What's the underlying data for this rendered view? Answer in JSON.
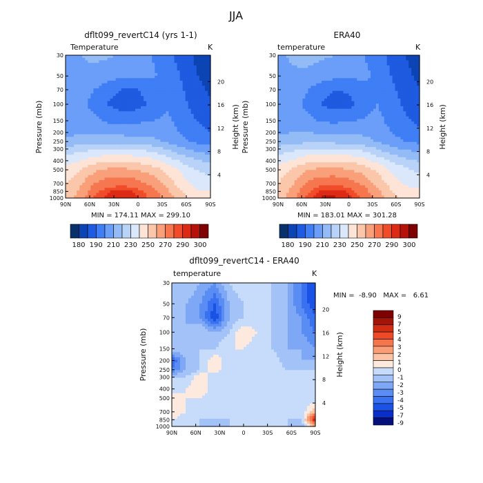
{
  "figure_title": "JJA",
  "colors": {
    "main_scale": [
      "#08306b",
      "#0c44b4",
      "#1e5be0",
      "#3f7ef5",
      "#6a9ef8",
      "#93bbf5",
      "#b9d2f7",
      "#dbe7fa",
      "#fde4d6",
      "#fbc7ab",
      "#f9a07a",
      "#f6764f",
      "#f04c2a",
      "#dc2a14",
      "#b5130a",
      "#7f0000"
    ],
    "diff_scale": [
      "#06107a",
      "#0a2fc8",
      "#1a52e6",
      "#3a71f0",
      "#5a8df3",
      "#7ea8f5",
      "#a3c2f7",
      "#c7dbfa",
      "#fde9de",
      "#fbc4a6",
      "#f99d77",
      "#f5754d",
      "#ee4a28",
      "#d22c12",
      "#a31408",
      "#7f0000"
    ]
  },
  "chart_data": [
    {
      "type": "heatmap",
      "title": "dflt099_revertC14 (yrs 1-1)",
      "variable_label": "Temperature",
      "units": "K",
      "xlabel": "",
      "ylabel": "Pressure (mb)",
      "ylabel_right": "Height (km)",
      "x_ticks": [
        "90N",
        "60N",
        "30N",
        "0",
        "30S",
        "60S",
        "90S"
      ],
      "y_ticks": [
        "30",
        "50",
        "70",
        "100",
        "150",
        "200",
        "250",
        "300",
        "400",
        "500",
        "700",
        "850",
        "1000"
      ],
      "y_ticks_right": [
        "20",
        "16",
        "12",
        "8",
        "4"
      ],
      "stats": "MIN = 174.11   MAX = 299.10",
      "colorbar_labels": [
        "180",
        "190",
        "210",
        "230",
        "250",
        "270",
        "290",
        "300"
      ],
      "field": [
        [
          218,
          220,
          222,
          221,
          219,
          214,
          210,
          203,
          196,
          188,
          180
        ],
        [
          216,
          218,
          217,
          214,
          212,
          211,
          211,
          208,
          199,
          191,
          184
        ],
        [
          213,
          214,
          210,
          203,
          199,
          200,
          205,
          208,
          201,
          194,
          188
        ],
        [
          212,
          213,
          207,
          199,
          195,
          196,
          203,
          209,
          203,
          196,
          191
        ],
        [
          214,
          215,
          212,
          208,
          207,
          208,
          210,
          212,
          206,
          200,
          195
        ],
        [
          217,
          219,
          219,
          218,
          217,
          217,
          217,
          215,
          209,
          204,
          200
        ],
        [
          223,
          225,
          227,
          227,
          226,
          225,
          223,
          218,
          213,
          208,
          206
        ],
        [
          233,
          236,
          239,
          240,
          240,
          239,
          236,
          229,
          222,
          217,
          214
        ],
        [
          245,
          250,
          256,
          258,
          258,
          257,
          253,
          246,
          238,
          231,
          227
        ],
        [
          253,
          260,
          268,
          272,
          272,
          270,
          265,
          257,
          248,
          240,
          236
        ],
        [
          259,
          268,
          280,
          286,
          287,
          284,
          277,
          266,
          255,
          247,
          244
        ],
        [
          262,
          272,
          287,
          295,
          297,
          293,
          284,
          272,
          260,
          251,
          250
        ],
        [
          264,
          274,
          291,
          299,
          299,
          296,
          288,
          276,
          264,
          255,
          255
        ]
      ]
    },
    {
      "type": "heatmap",
      "title": "ERA40",
      "variable_label": "temperature",
      "units": "K",
      "xlabel": "",
      "ylabel": "Pressure (mb)",
      "ylabel_right": "Height (km)",
      "x_ticks": [
        "90N",
        "60N",
        "30N",
        "0",
        "30S",
        "60S",
        "90S"
      ],
      "y_ticks": [
        "30",
        "50",
        "70",
        "100",
        "150",
        "200",
        "250",
        "300",
        "400",
        "500",
        "700",
        "850",
        "1000"
      ],
      "y_ticks_right": [
        "20",
        "16",
        "12",
        "8",
        "4"
      ],
      "stats": "MIN = 183.01   MAX = 301.28",
      "colorbar_labels": [
        "180",
        "190",
        "210",
        "230",
        "250",
        "270",
        "290",
        "300"
      ],
      "field": [
        [
          219,
          221,
          223,
          222,
          220,
          215,
          211,
          204,
          197,
          190,
          184
        ],
        [
          217,
          219,
          218,
          215,
          213,
          212,
          212,
          209,
          200,
          193,
          187
        ],
        [
          214,
          215,
          211,
          204,
          200,
          201,
          206,
          209,
          202,
          196,
          190
        ],
        [
          213,
          214,
          208,
          200,
          196,
          197,
          204,
          210,
          204,
          198,
          193
        ],
        [
          215,
          216,
          213,
          209,
          208,
          209,
          211,
          213,
          207,
          202,
          197
        ],
        [
          218,
          220,
          220,
          219,
          218,
          218,
          218,
          216,
          210,
          206,
          202
        ],
        [
          224,
          226,
          228,
          228,
          227,
          226,
          224,
          219,
          214,
          210,
          208
        ],
        [
          234,
          237,
          240,
          241,
          241,
          240,
          237,
          230,
          223,
          219,
          216
        ],
        [
          246,
          251,
          257,
          259,
          259,
          258,
          254,
          247,
          239,
          233,
          229
        ],
        [
          254,
          261,
          269,
          273,
          273,
          271,
          266,
          258,
          249,
          242,
          238
        ],
        [
          260,
          269,
          281,
          287,
          288,
          285,
          278,
          267,
          256,
          249,
          246
        ],
        [
          263,
          273,
          288,
          296,
          298,
          294,
          285,
          273,
          261,
          253,
          252
        ],
        [
          265,
          275,
          292,
          301,
          301,
          297,
          289,
          277,
          265,
          257,
          257
        ]
      ]
    },
    {
      "type": "heatmap",
      "title": "dflt099_revertC14 - ERA40",
      "variable_label": "temperature",
      "units": "K",
      "xlabel": "",
      "ylabel": "Pressure (mb)",
      "ylabel_right": "Height (km)",
      "x_ticks": [
        "90N",
        "60N",
        "30N",
        "0",
        "30S",
        "60S",
        "90S"
      ],
      "y_ticks": [
        "30",
        "50",
        "70",
        "100",
        "150",
        "200",
        "250",
        "300",
        "400",
        "500",
        "700",
        "850",
        "1000"
      ],
      "y_ticks_right": [
        "20",
        "16",
        "12",
        "8",
        "4"
      ],
      "stats": "MIN =  -8.90   MAX =   6.61",
      "colorbar_labels": [
        "9",
        "7",
        "5",
        "4",
        "3",
        "2",
        "1",
        "0",
        "-1",
        "-2",
        "-3",
        "-4",
        "-5",
        "-7",
        "-9"
      ],
      "field": [
        [
          -1,
          -1,
          -2,
          -3,
          -1,
          0,
          -1,
          -1,
          -2,
          -4,
          -7
        ],
        [
          -1,
          -2,
          -3,
          -5,
          -2,
          -1,
          -1,
          -1,
          -2,
          -4,
          -6
        ],
        [
          -1,
          -2,
          -3,
          -6,
          -2,
          -1,
          -1,
          -1,
          -2,
          -3,
          -5
        ],
        [
          -2,
          -2,
          -1,
          -2,
          -1,
          1,
          0,
          -1,
          -2,
          -3,
          -4
        ],
        [
          -1,
          -1,
          -1,
          -1,
          0,
          0,
          -1,
          -1,
          -2,
          -2,
          -3
        ],
        [
          -5,
          -2,
          -1,
          1,
          -1,
          -1,
          -1,
          0,
          -2,
          -2,
          -2
        ],
        [
          -4,
          -2,
          -1,
          1,
          -1,
          -1,
          -1,
          0,
          -1,
          -1,
          -1
        ],
        [
          -1,
          -1,
          1,
          -1,
          -1,
          -1,
          -1,
          -1,
          -1,
          -1,
          -1
        ],
        [
          -1,
          0,
          1,
          -1,
          -1,
          -1,
          -1,
          -1,
          -1,
          -1,
          -1
        ],
        [
          1,
          0,
          0,
          -1,
          -1,
          -1,
          -1,
          -1,
          -1,
          -1,
          -1
        ],
        [
          1,
          0,
          -1,
          -1,
          -1,
          -1,
          -1,
          -1,
          -1,
          -1,
          2
        ],
        [
          0,
          -1,
          -1,
          -1,
          -1,
          -1,
          -1,
          -1,
          -1,
          -1,
          6
        ],
        [
          -1,
          -1,
          -1,
          -2,
          -1,
          -1,
          -1,
          -1,
          -1,
          -2,
          2
        ]
      ]
    }
  ]
}
